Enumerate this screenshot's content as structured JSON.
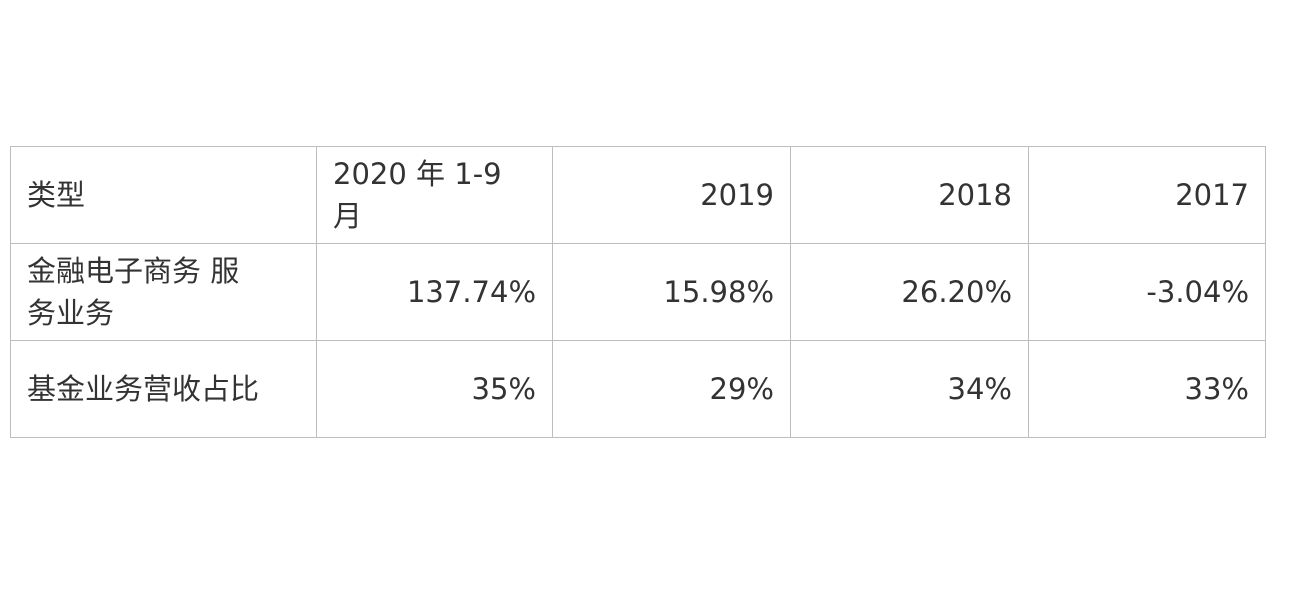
{
  "table": {
    "header": [
      "类型",
      "2020 年 1-9 月",
      "2019",
      "2018",
      "2017"
    ],
    "rows": [
      [
        "金融电子商务 服务业务",
        "137.74%",
        "15.98%",
        "26.20%",
        "-3.04%"
      ],
      [
        "基金业务营收占比",
        "35%",
        "29%",
        "34%",
        "33%"
      ]
    ]
  }
}
